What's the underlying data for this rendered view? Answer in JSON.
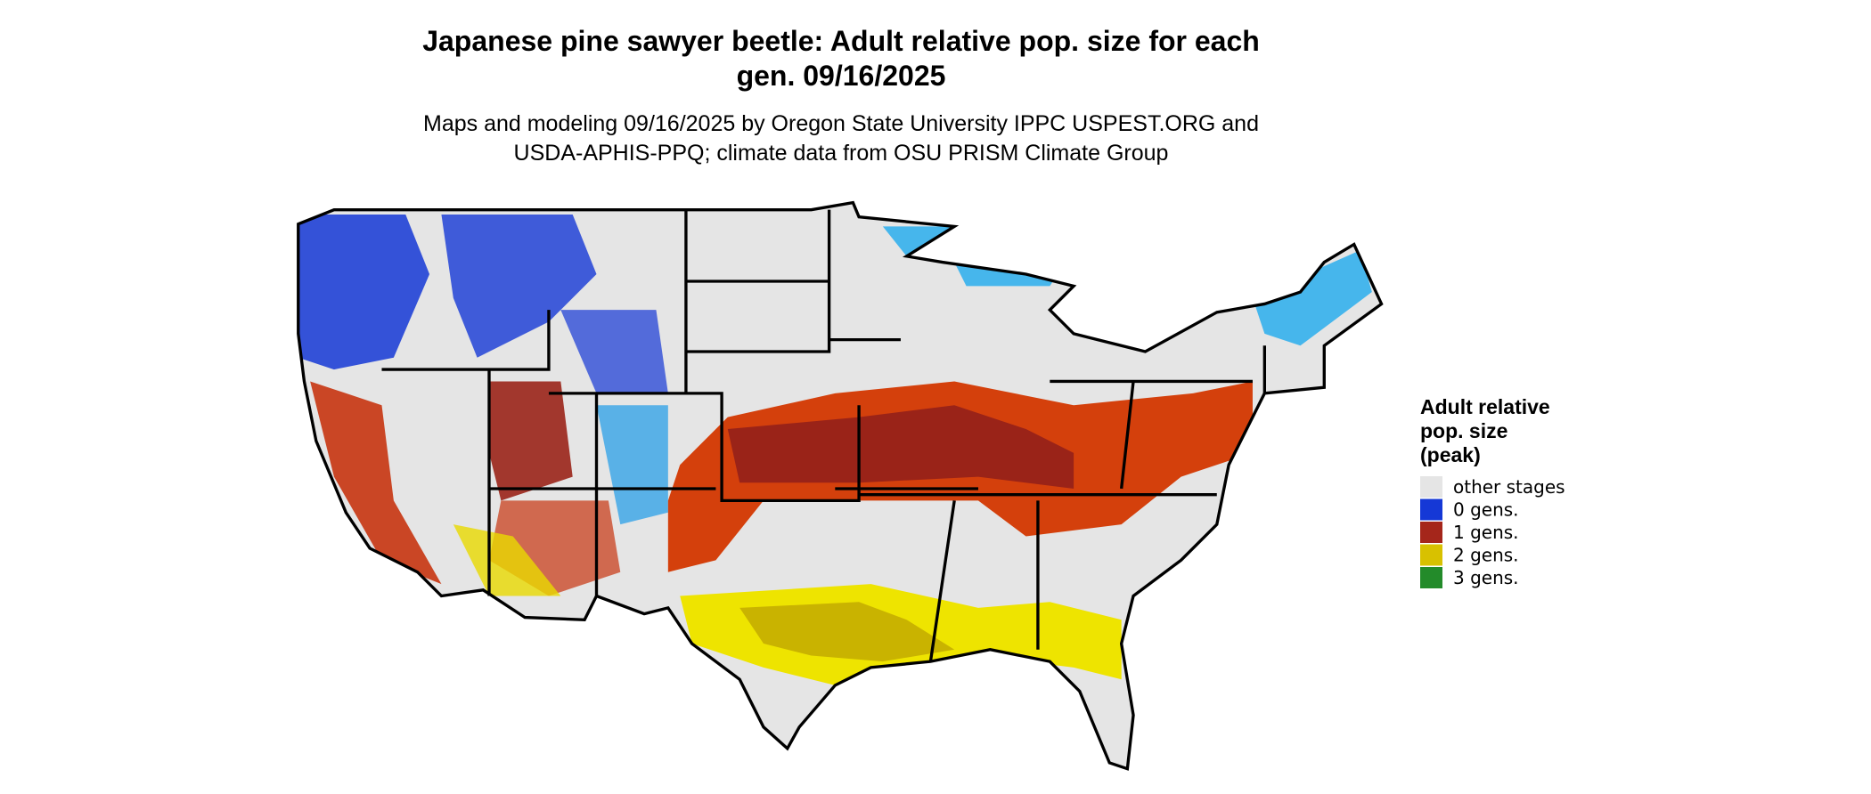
{
  "header": {
    "title_lines": [
      "Japanese pine sawyer beetle: Adult relative pop. size for each",
      "gen. 09/16/2025"
    ],
    "subtitle_lines": [
      "Maps and modeling 09/16/2025 by Oregon State University IPPC USPEST.ORG and",
      "USDA-APHIS-PPQ; climate data from OSU PRISM Climate Group"
    ]
  },
  "legend": {
    "title_lines": [
      "Adult relative",
      "pop. size",
      "(peak)"
    ],
    "items": [
      {
        "label": "other stages",
        "color": "#e5e5e5"
      },
      {
        "label": "0 gens.",
        "color": "#1538d6"
      },
      {
        "label": "1 gens.",
        "color": "#a5261b"
      },
      {
        "label": "2 gens.",
        "color": "#d8c100"
      },
      {
        "label": "3 gens.",
        "color": "#238b2a"
      }
    ]
  }
}
